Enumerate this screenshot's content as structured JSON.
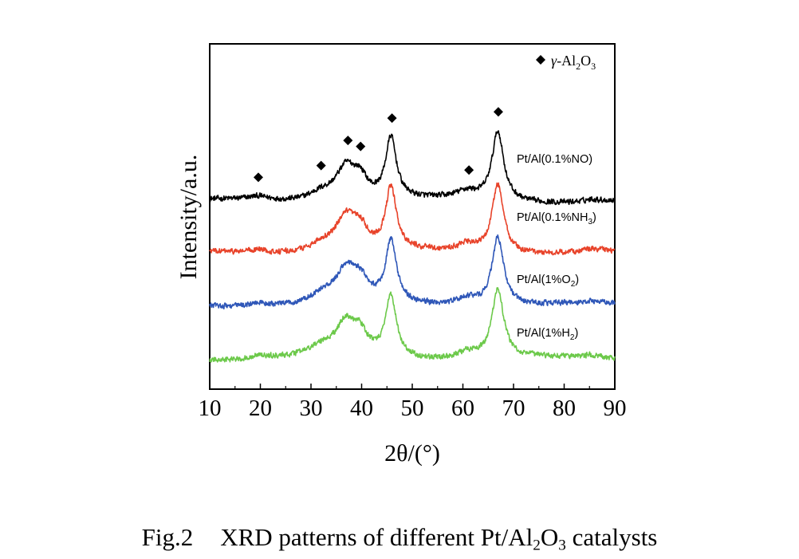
{
  "chart_data": {
    "type": "line",
    "title": "",
    "xlabel": "2θ/(°)",
    "ylabel": "Intensity/a.u.",
    "xlim": [
      10,
      90
    ],
    "x_ticks": [
      10,
      20,
      30,
      40,
      50,
      60,
      70,
      80,
      90
    ],
    "y_ticks_shown": false,
    "legend": {
      "marker": "diamond",
      "label": "γ-Al2O3",
      "label_parts": {
        "greek": "γ",
        "rest": "-Al",
        "sub1": "2",
        "mid": "O",
        "sub2": "3"
      },
      "position": "top-right"
    },
    "series": [
      {
        "name": "Pt/Al(0.1%NO)",
        "name_parts": {
          "pre": "Pt/Al(0.1%NO)",
          "sub": "",
          "post": ""
        },
        "color": "#000000",
        "baseline": 3.15,
        "noise": 0.05
      },
      {
        "name": "Pt/Al(0.1%NH3)",
        "name_parts": {
          "pre": "Pt/Al(0.1%NH",
          "sub": "3",
          "post": ")"
        },
        "color": "#e8432a",
        "baseline": 2.12,
        "noise": 0.05
      },
      {
        "name": "Pt/Al(1%O2)",
        "name_parts": {
          "pre": "Pt/Al(1%O",
          "sub": "2",
          "post": ")"
        },
        "color": "#2f57b8",
        "baseline": 1.07,
        "noise": 0.05
      },
      {
        "name": "Pt/Al(1%H2)",
        "name_parts": {
          "pre": "Pt/Al(1%H",
          "sub": "2",
          "post": ")"
        },
        "color": "#6cc94a",
        "baseline": 0.0,
        "noise": 0.05
      }
    ],
    "peak_profile": [
      {
        "center": 19.6,
        "height": 0.07,
        "width": 2.5
      },
      {
        "center": 32.0,
        "height": 0.16,
        "width": 3.0
      },
      {
        "center": 37.0,
        "height": 0.68,
        "width": 2.6
      },
      {
        "center": 39.8,
        "height": 0.32,
        "width": 1.6
      },
      {
        "center": 45.8,
        "height": 1.22,
        "width": 1.3
      },
      {
        "center": 60.8,
        "height": 0.15,
        "width": 2.6
      },
      {
        "center": 66.9,
        "height": 1.38,
        "width": 1.4
      },
      {
        "center": 85.5,
        "height": 0.05,
        "width": 2.0
      }
    ],
    "diamond_markers_x": [
      19.6,
      32.0,
      37.3,
      39.8,
      46.0,
      61.2,
      67.0
    ],
    "ylim": [
      -0.6,
      6.3
    ]
  },
  "caption": {
    "fig_number": "Fig.2",
    "pre": "XRD patterns of different Pt/Al",
    "sub1": "2",
    "mid": "O",
    "sub2": "3",
    "post": " catalysts"
  }
}
